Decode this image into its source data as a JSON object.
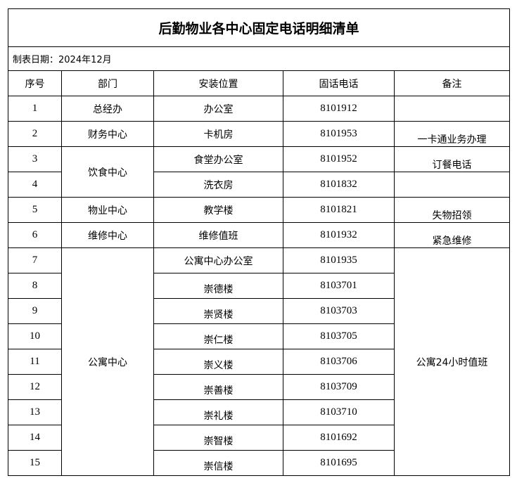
{
  "title": "后勤物业各中心固定电话明细清单",
  "date_label": "制表日期：2024年12月",
  "headers": [
    "序号",
    "部门",
    "安装位置",
    "固话电话",
    "备注"
  ],
  "rows": [
    {
      "no": "1",
      "dept": "总经办",
      "location": "办公室",
      "phone": "8101912",
      "remark": ""
    },
    {
      "no": "2",
      "dept": "财务中心",
      "location": "卡机房",
      "phone": "8101953",
      "remark": "一卡通业务办理"
    },
    {
      "no": "3",
      "dept": "饮食中心",
      "location": "食堂办公室",
      "phone": "8101952",
      "remark": "订餐电话"
    },
    {
      "no": "4",
      "dept": "",
      "location": "洗衣房",
      "phone": "8101832",
      "remark": ""
    },
    {
      "no": "5",
      "dept": "物业中心",
      "location": "教学楼",
      "phone": "8101821",
      "remark": "失物招领"
    },
    {
      "no": "6",
      "dept": "维修中心",
      "location": "维修值班",
      "phone": "8101932",
      "remark": "紧急维修"
    },
    {
      "no": "7",
      "dept": "公寓中心",
      "location": "公寓中心办公室",
      "phone": "8101935",
      "remark": "公寓24小时值班"
    },
    {
      "no": "8",
      "location": "崇德楼",
      "phone": "8103701"
    },
    {
      "no": "9",
      "location": "崇贤楼",
      "phone": "8103703"
    },
    {
      "no": "10",
      "location": "崇仁楼",
      "phone": "8103705"
    },
    {
      "no": "11",
      "location": "崇义楼",
      "phone": "8103706"
    },
    {
      "no": "12",
      "location": "崇善楼",
      "phone": "8103709"
    },
    {
      "no": "13",
      "location": "崇礼楼",
      "phone": "8103710"
    },
    {
      "no": "14",
      "location": "崇智楼",
      "phone": "8101692"
    },
    {
      "no": "15",
      "location": "崇信楼",
      "phone": "8101695"
    }
  ]
}
